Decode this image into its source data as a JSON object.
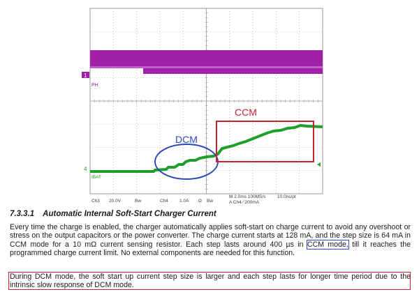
{
  "scope": {
    "ch_label_ph": "PH",
    "marker_1": "1",
    "marker_4": "4",
    "ch_label_ibat": "IBAT",
    "bottom_bar": {
      "ch3": "Ch3",
      "ch3_scale": "20.0V",
      "ch3_bw": "Bw",
      "ch4": "Ch4",
      "ch4_scale": "1.0A",
      "ch4_imp": "Ω",
      "ch4_bw": "Bw",
      "timebase": "M 2.0ms 100MS/s",
      "sample": "10.0ns/pt",
      "trigger": "A  Ch4  ∕  200mA"
    },
    "annotations": {
      "dcm": "DCM",
      "ccm": "CCM"
    },
    "colors": {
      "ph_trace": "#a020a8",
      "ibat_trace": "#1f9e2a",
      "dcm_ellipse": "#2a48b8",
      "ccm_box": "#c8202f",
      "grid": "#9a9a9a"
    }
  },
  "section": {
    "number": "7.3.3.1",
    "title": "Automatic Internal Soft-Start Charger Current"
  },
  "paragraph1": {
    "before": "Every time the charge is enabled, the charger automatically applies soft-start on charge current to avoid any overshoot or stress on the output capacitors or the power converter. The charge current starts at 128 mA, and the step size is 64 mA in CCM mode for a 10 mΩ current sensing resistor. Each step lasts around 400 µs in ",
    "highlight": "CCM mode,",
    "after": " till it reaches the programmed charge current limit. No external components are needed for this function."
  },
  "paragraph2": "During DCM mode, the soft start up current step size is larger and each step lasts for longer time period due to the intrinsic slow response of DCM mode."
}
